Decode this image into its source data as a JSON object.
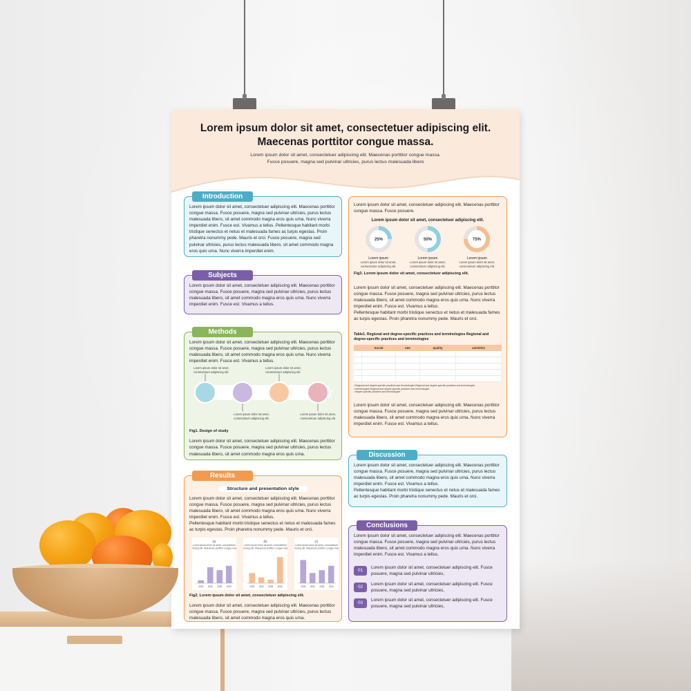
{
  "poster": {
    "title": "Lorem ipsum dolor sit amet, consectetuer adipiscing elit. Maecenas porttitor congue massa.",
    "subtitle_1": "Lorem ipsum dolor sit amet, consectetuer adipiscing elit. Maecenas porttitor congue massa.",
    "subtitle_2": "Fusce posuere, magna sed pulvinar ultricies, purus lectus malesuada libero",
    "colors": {
      "header_bg": "#fbe9dc",
      "blue": "#4eadc6",
      "purple": "#7b5ea8",
      "green": "#8ab55a",
      "orange": "#f39a4e"
    }
  },
  "introduction": {
    "label": "Introduction",
    "text": "Lorem ipsum dolor sit amet, consectetuer adipiscing elit. Maecenas porttitor congue massa. Fusce posuere, magna sed pulvinar ultricies, purus lectus malesuada libero, sit amet commodo magna eros quis urna. Nunc viverra imperdiet enim. Fusce est. Vivamus a tellus. Pellentesque habitant morbi tristique senectus et netus et malesuada fames ac turpis egestas. Proin pharetra nonummy pede. Mauris et orci. Fusce posuere, magna sed pulvinar ultricies, purus lectus malesuada libero, sit amet commodo magna eros quis urna. Nunc viverra imperdiet enim."
  },
  "subjects": {
    "label": "Subjects",
    "text": "Lorem ipsum dolor sit amet, consectetuer adipiscing elit. Maecenas porttitor congue massa. Fusce posuere, magna sed pulvinar ultricies, purus lectus malesuada libero, sit amet commodo magna eros quis urna. Nunc viverra imperdiet enim. Fusce est. Vivamus a tellus."
  },
  "methods": {
    "label": "Methods",
    "text_top": "Lorem ipsum dolor sit amet, consectetuer adipiscing elit. Maecenas porttitor congue massa. Fusce posuere, magna sed pulvinar ultricies, purus lectus malesuada libero, sit amet commodo magna eros quis urna. Nunc viverra imperdiet enim. Fusce est. Vivamus a tellus.",
    "diagram_top_1": "Lorem ipsum dolor sit amet, consectetuer adipiscing elit.",
    "diagram_top_2": "Lorem ipsum dolor sit amet, consectetuer adipiscing elit.",
    "diagram_bottom_1": "Lorem ipsum dolor sit amet, consectetuer adipiscing elit.",
    "diagram_bottom_2": "Lorem ipsum dolor sit amet, consectetuer adipiscing elit.",
    "circle_colors": [
      "#a8d8e6",
      "#c9b8e0",
      "#f9c8a2",
      "#eab3bb"
    ],
    "fig_caption": "Fig1. Design of study",
    "text_bottom": "Lorem ipsum dolor sit amet, consectetuer adipiscing elit. Maecenas porttitor congue massa. Fusce posuere, magna sed pulvinar ultricies, purus lectus malesuada libero, sit amet commodo magna eros quis urna."
  },
  "results": {
    "label": "Results",
    "pill": "Structure and presentation style",
    "text_top": "Lorem ipsum dolor sit amet, consectetuer adipiscing elit. Maecenas porttitor congue massa. Fusce posuere, magna sed pulvinar ultricies, purus lectus malesuada libero, sit amet commodo magna eros quis urna. Nunc viverra imperdiet enim. Fusce est. Vivamus a tellus.",
    "text_top_2": "Pellentesque habitant morbi tristique senectus et netus et malesuada fames ac turpis egestas. Proin pharetra nonummy pede. Mauris et orci.",
    "fig_caption": "Fig2. Lorem ipsum dolor sit amet, consectetuer adipiscing elit.",
    "text_bottom": "Lorem ipsum dolor sit amet, consectetuer adipiscing elit. Maecenas porttitor congue massa. Fusce posuere, magna sed pulvinar ultricies, purus lectus malesuada libero, sit amet commodo magna eros quis urna."
  },
  "chart_data": [
    {
      "type": "bar",
      "title": "(a)",
      "subtitle": "Lorem ipsum dolor sit amet, consectetuer adipiscing elit. Maecenas porttitor congue massa.",
      "categories": [
        "2025",
        "2030",
        "2035",
        "2040"
      ],
      "values": [
        10,
        55,
        45,
        60
      ],
      "color": "#b9a6d8",
      "ylim": [
        0,
        100
      ]
    },
    {
      "type": "bar",
      "title": "(b)",
      "subtitle": "Lorem ipsum dolor sit amet, consectetuer adipiscing elit. Maecenas porttitor congue massa.",
      "categories": [
        "2025",
        "2030",
        "2035",
        "2040"
      ],
      "values": [
        35,
        20,
        12,
        90
      ],
      "color": "#f6be90",
      "ylim": [
        0,
        100
      ]
    },
    {
      "type": "bar",
      "title": "(c)",
      "subtitle": "Lorem ipsum dolor sit amet, consectetuer adipiscing elit. Maecenas porttitor congue massa.",
      "categories": [
        "2025",
        "2030",
        "2035",
        "2040"
      ],
      "values": [
        80,
        35,
        45,
        60
      ],
      "color": "#b9a6d8",
      "ylim": [
        0,
        100
      ]
    }
  ],
  "right_top": {
    "text": "Lorem ipsum dolor sit amet, consectetuer adipiscing elit. Maecenas porttitor congue massa. Fusce posuere.",
    "donut_heading": "Lorem ipsum dolor sit amet, consectetuer adipiscing elit.",
    "donuts": [
      {
        "value": 25,
        "label": "25%",
        "name": "Lorem ipsum",
        "desc": "Lorem ipsum dolor sit amet, consectetuer adipiscing elit.",
        "color": "#8fcfe2"
      },
      {
        "value": 50,
        "label": "50%",
        "name": "Lorem ipsum",
        "desc": "Lorem ipsum dolor sit amet, consectetuer adipiscing elit.",
        "color": "#8fcfe2"
      },
      {
        "value": 75,
        "label": "75%",
        "name": "Lorem ipsum",
        "desc": "Lorem ipsum dolor sit amet, consectetuer adipiscing elit.",
        "color": "#f6be90"
      }
    ],
    "fig_caption": "Fig3. Lorem ipsum dolor sit amet, consectetuer adipiscing elit.",
    "text_2": "Lorem ipsum dolor sit amet, consectetuer adipiscing elit. Maecenas porttitor congue massa. Fusce posuere, magna sed pulvinar ultricies, purus lectus malesuada libero, sit amet commodo magna eros quis urna. Nunc viverra imperdiet enim. Fusce est. Vivamus a tellus.",
    "text_3": "Pellentesque habitant morbi tristique senectus et netus et malesuada fames ac turpis egestas. Proin pharetra nonummy pede. Mauris et orci.",
    "table_caption": "Table1. Regional and degree-specific practices and terminologies Regional and degree-specific practices and terminologies",
    "table_headers": [
      "",
      "Social",
      "rate",
      "quality",
      "activities"
    ],
    "table_notes": [
      "• Regional and degree-specific practices and terminologies Regional and degree-specific practices and terminologies",
      "• terminologies Regional and degree-specific practices and terminologies",
      "• degree-specific practices and terminologies"
    ],
    "text_4": "Lorem ipsum dolor sit amet, consectetuer adipiscing elit. Maecenas porttitor congue massa. Fusce posuere, magna sed pulvinar ultricies, purus lectus malesuada libero, sit amet commodo magna eros quis urna. Nunc viverra imperdiet enim. Fusce est. Vivamus a tellus."
  },
  "discussion": {
    "label": "Discussion",
    "text": "Lorem ipsum dolor sit amet, consectetuer adipiscing elit. Maecenas porttitor congue massa. Fusce posuere, magna sed pulvinar ultricies, purus lectus malesuada libero, sit amet commodo magna eros quis urna. Nunc viverra imperdiet enim. Fusce est. Vivamus a tellus.",
    "text_2": "Pellentesque habitant morbi tristique senectus et netus et malesuada fames ac turpis egestas. Proin pharetra nonummy pede. Mauris et orci."
  },
  "conclusions": {
    "label": "Conclusions",
    "text": "Lorem ipsum dolor sit amet, consectetuer adipiscing elit. Maecenas porttitor congue massa. Fusce posuere, magna sed pulvinar ultricies, purus lectus malesuada libero, sit amet commodo magna eros quis urna. Nunc viverra imperdiet enim. Fusce est. Vivamus a tellus.",
    "items": [
      {
        "num": "01",
        "text": "Lorem ipsum dolor sit amet, consectetuer adipiscing elit. Fusce posuere, magna sed pulvinar ultricies,"
      },
      {
        "num": "02",
        "text": "Lorem ipsum dolor sit amet, consectetuer adipiscing elit. Fusce posuere, magna sed pulvinar ultricies,"
      },
      {
        "num": "03",
        "text": "Lorem ipsum dolor sit amet, consectetuer adipiscing elit. Fusce posuere, magna sed pulvinar ultricies,"
      }
    ]
  }
}
